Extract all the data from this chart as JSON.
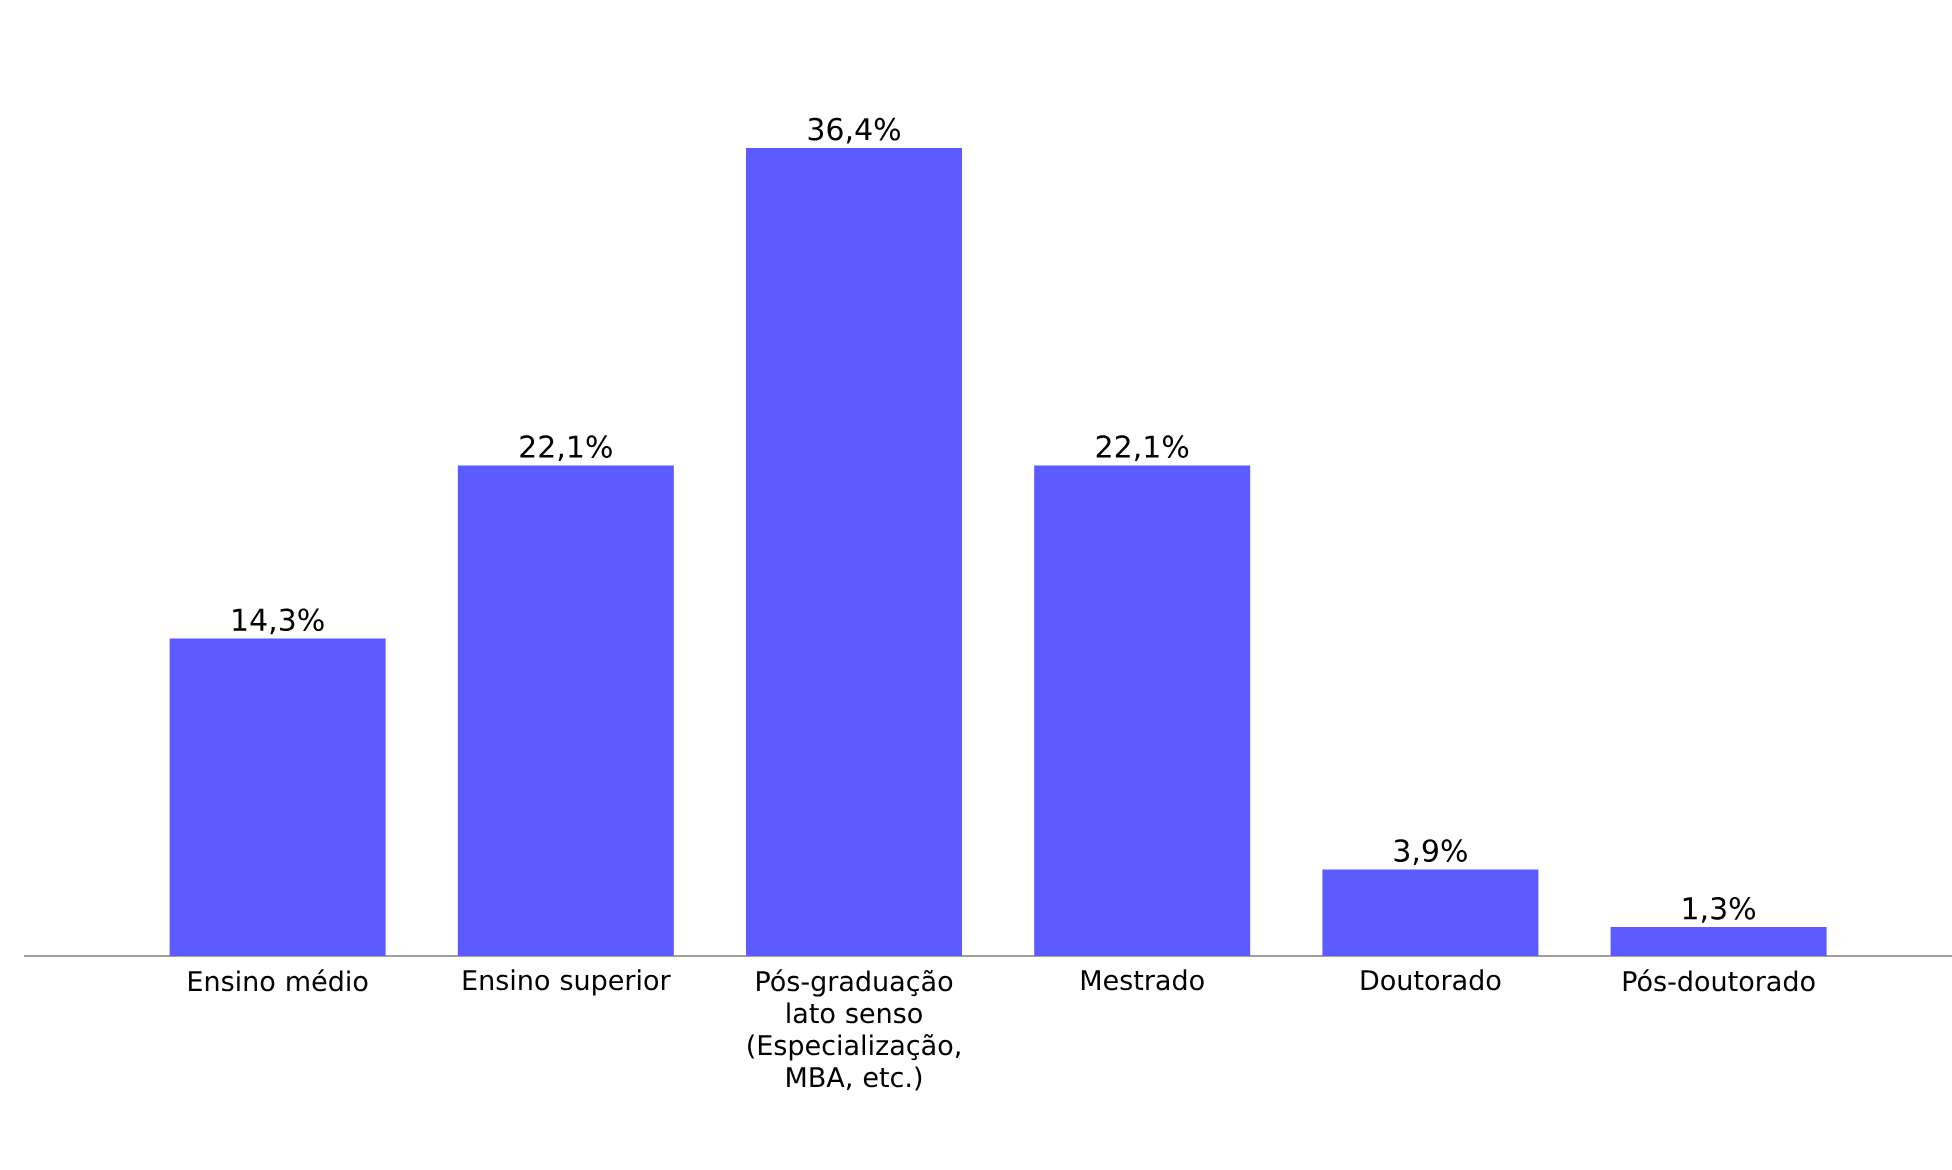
{
  "chart_data": {
    "type": "bar",
    "categories": [
      "Ensino médio",
      "Ensino superior",
      "Pós-graduação lato senso (Especialização, MBA, etc.)",
      "Mestrado",
      "Doutorado",
      "Pós-doutorado"
    ],
    "values": [
      14.3,
      22.1,
      36.4,
      22.1,
      3.9,
      1.3
    ],
    "value_labels": [
      "14,3%",
      "22,1%",
      "36,4%",
      "22,1%",
      "3,9%",
      "1,3%"
    ],
    "color": "#5b5bff"
  }
}
